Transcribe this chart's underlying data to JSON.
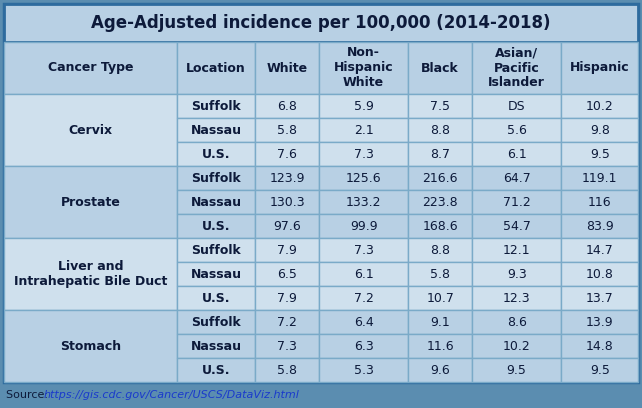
{
  "title": "Age-Adjusted incidence per 100,000 (2014-2018)",
  "source_label": "Source: ",
  "source_url": "https://gis.cdc.gov/Cancer/USCS/DataViz.html",
  "col_headers": [
    "Cancer Type",
    "Location",
    "White",
    "Non-\nHispanic\nWhite",
    "Black",
    "Asian/\nPacific\nIslander",
    "Hispanic"
  ],
  "cancer_types": [
    "Cervix",
    "Prostate",
    "Liver and\nIntrahepatic Bile Duct",
    "Stomach"
  ],
  "locations": [
    "Suffolk",
    "Nassau",
    "U.S."
  ],
  "data": [
    [
      [
        "6.8",
        "5.9",
        "7.5",
        "DS",
        "10.2"
      ],
      [
        "5.8",
        "2.1",
        "8.8",
        "5.6",
        "9.8"
      ],
      [
        "7.6",
        "7.3",
        "8.7",
        "6.1",
        "9.5"
      ]
    ],
    [
      [
        "123.9",
        "125.6",
        "216.6",
        "64.7",
        "119.1"
      ],
      [
        "130.3",
        "133.2",
        "223.8",
        "71.2",
        "116"
      ],
      [
        "97.6",
        "99.9",
        "168.6",
        "54.7",
        "83.9"
      ]
    ],
    [
      [
        "7.9",
        "7.3",
        "8.8",
        "12.1",
        "14.7"
      ],
      [
        "6.5",
        "6.1",
        "5.8",
        "9.3",
        "10.8"
      ],
      [
        "7.9",
        "7.2",
        "10.7",
        "12.3",
        "13.7"
      ]
    ],
    [
      [
        "7.2",
        "6.4",
        "9.1",
        "8.6",
        "13.9"
      ],
      [
        "7.3",
        "6.3",
        "11.6",
        "10.2",
        "14.8"
      ],
      [
        "5.8",
        "5.3",
        "9.6",
        "9.5",
        "9.5"
      ]
    ]
  ],
  "bg_outer": "#5b8db0",
  "bg_title": "#b8d0e4",
  "bg_header": "#b8d0e4",
  "bg_even": "#cfe0ed",
  "bg_odd": "#b8d0e4",
  "border_outer": "#2e6b9e",
  "border_inner": "#7aaac8",
  "title_fontsize": 12,
  "header_fontsize": 9,
  "cell_fontsize": 9,
  "source_fontsize": 8,
  "text_color": "#0d1a3a"
}
